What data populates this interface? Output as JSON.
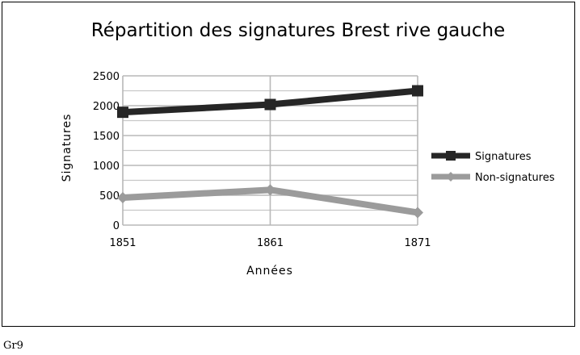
{
  "chart_data": {
    "type": "line",
    "title": "Répartition des signatures Brest rive gauche",
    "xlabel": "Années",
    "ylabel": "Signatures",
    "categories": [
      "1851",
      "1861",
      "1871"
    ],
    "ylim": [
      0,
      2500
    ],
    "yticks": [
      "0",
      "500",
      "1000",
      "1500",
      "2000",
      "2500"
    ],
    "grid": true,
    "legend_position": "right",
    "series": [
      {
        "name": "Signatures",
        "values": [
          1890,
          2020,
          2250
        ],
        "color": "#262626",
        "marker": "square"
      },
      {
        "name": "Non-signatures",
        "values": [
          460,
          590,
          210
        ],
        "color": "#9b9b9b",
        "marker": "diamond"
      }
    ]
  },
  "footer": {
    "note": "Gr9"
  }
}
